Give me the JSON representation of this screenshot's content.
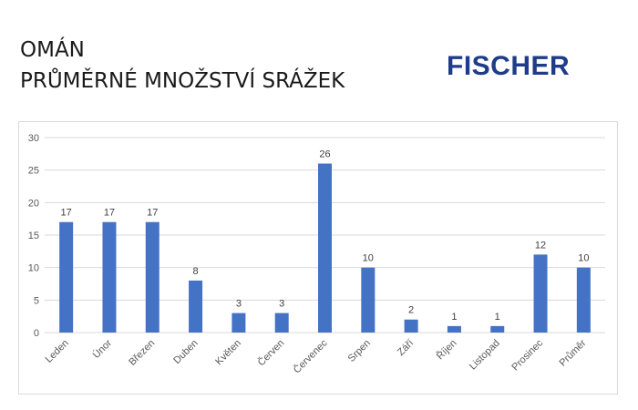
{
  "header": {
    "title_line1": "OMÁN",
    "title_line2": "PRŮMĚRNÉ MNOŽSTVÍ SRÁŽEK",
    "logo_text": "FISCHER"
  },
  "colors": {
    "bar": "#4472c4",
    "grid": "#d9d9d9",
    "logo": "#1f3c88"
  },
  "chart_data": {
    "type": "bar",
    "categories": [
      "Leden",
      "Únor",
      "Březen",
      "Duben",
      "Květen",
      "Červen",
      "Červenec",
      "Srpen",
      "Září",
      "Říjen",
      "Listopad",
      "Prosinec",
      "Průměr"
    ],
    "values": [
      17,
      17,
      17,
      8,
      3,
      3,
      26,
      10,
      2,
      1,
      1,
      12,
      10
    ],
    "data_labels": [
      "17",
      "17",
      "17",
      "8",
      "3",
      "3",
      "26",
      "10",
      "2",
      "1",
      "1",
      "12",
      "10"
    ],
    "yticks": [
      0,
      5,
      10,
      15,
      20,
      25,
      30
    ],
    "ylim": [
      0,
      30
    ],
    "grid": true,
    "legend": "none"
  }
}
